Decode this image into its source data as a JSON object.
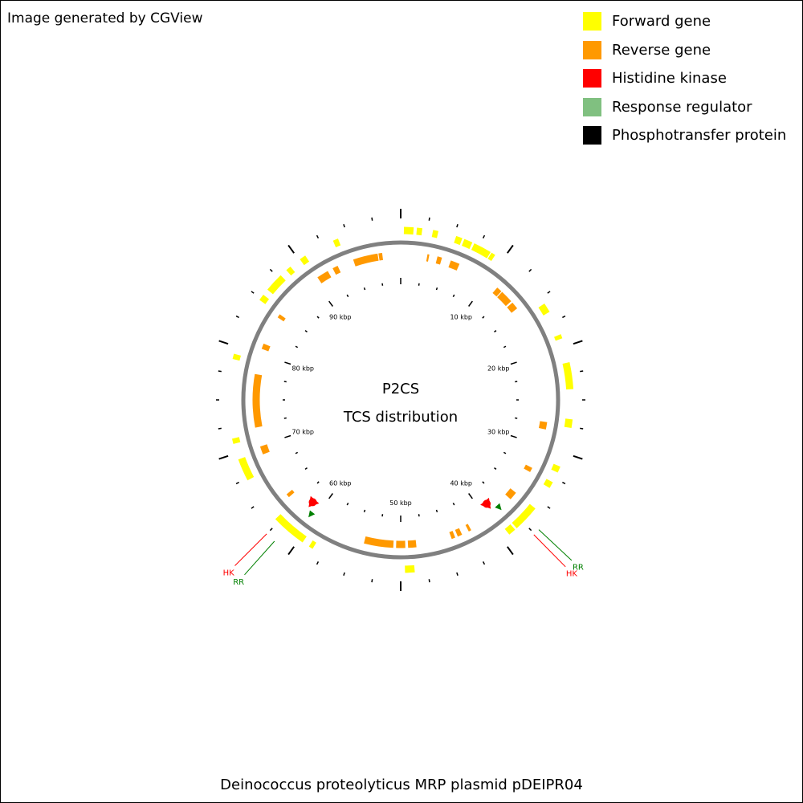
{
  "credit": "Image generated by CGView",
  "center": {
    "line1": "P2CS",
    "line2": "TCS distribution"
  },
  "footer": "Deinococcus proteolyticus MRP plasmid pDEIPR04",
  "legend": [
    {
      "label": "Forward gene",
      "color": "#ffff00"
    },
    {
      "label": "Reverse gene",
      "color": "#ff9900"
    },
    {
      "label": "Histidine kinase",
      "color": "#ff0000"
    },
    {
      "label": "Response regulator",
      "color": "#80c080"
    },
    {
      "label": "Phosphotransfer protein",
      "color": "#000000"
    }
  ],
  "colors": {
    "backbone": "#808080",
    "forward": "#ffff00",
    "reverse": "#ff9900",
    "hk": "#ff0000",
    "rr": "#008000",
    "tick": "#000000"
  },
  "genome": {
    "length_kbp": 100,
    "tick_labels": [
      "10 kbp",
      "20 kbp",
      "30 kbp",
      "40 kbp",
      "50 kbp",
      "60 kbp",
      "70 kbp",
      "80 kbp",
      "90 kbp"
    ],
    "forward_genes_kbp": [
      [
        0.3,
        1.2
      ],
      [
        1.5,
        2.0
      ],
      [
        3.0,
        3.5
      ],
      [
        5.2,
        5.8
      ],
      [
        6.0,
        6.8
      ],
      [
        7.0,
        8.7
      ],
      [
        8.8,
        9.2
      ],
      [
        15.6,
        16.5
      ],
      [
        18.8,
        19.2
      ],
      [
        21.5,
        24.0
      ],
      [
        26.8,
        27.6
      ],
      [
        31.3,
        31.9
      ],
      [
        32.9,
        33.5
      ],
      [
        35.8,
        38.3
      ],
      [
        38.5,
        39.2
      ],
      [
        48.7,
        49.6
      ],
      [
        58.5,
        58.9
      ],
      [
        59.6,
        62.9
      ],
      [
        67.3,
        69.4
      ],
      [
        70.9,
        71.4
      ],
      [
        78.8,
        79.3
      ],
      [
        84.8,
        85.4
      ],
      [
        86.0,
        87.8
      ],
      [
        88.5,
        89.0
      ],
      [
        90.1,
        90.7
      ],
      [
        93.6,
        94.1
      ]
    ],
    "reverse_genes_kbp": [
      [
        2.9,
        3.1
      ],
      [
        4.0,
        4.5
      ],
      [
        5.5,
        6.5
      ],
      [
        11.3,
        11.9
      ],
      [
        12.0,
        13.4
      ],
      [
        13.6,
        14.4
      ],
      [
        27.4,
        28.2
      ],
      [
        32.6,
        33.1
      ],
      [
        35.8,
        36.7
      ],
      [
        42.1,
        42.4
      ],
      [
        43.2,
        43.7
      ],
      [
        44.0,
        44.4
      ],
      [
        48.3,
        49.2
      ],
      [
        49.5,
        50.5
      ],
      [
        50.8,
        54.0
      ],
      [
        63.6,
        64.0
      ],
      [
        69.0,
        69.9
      ],
      [
        72.0,
        77.8
      ],
      [
        80.6,
        81.2
      ],
      [
        84.4,
        84.8
      ],
      [
        90.5,
        91.8
      ],
      [
        92.4,
        93.0
      ],
      [
        94.8,
        97.5
      ],
      [
        97.6,
        98.0
      ]
    ],
    "hk_kbp": [
      39.0,
      61.3
    ],
    "rr_kbp": [
      38.2,
      60.6
    ],
    "callouts": [
      {
        "kbp": 37.6,
        "label": "HK",
        "type": "hk"
      },
      {
        "kbp": 37.0,
        "label": "RR",
        "type": "rr"
      },
      {
        "kbp": 62.5,
        "label": "HK",
        "type": "hk"
      },
      {
        "kbp": 61.6,
        "label": "RR",
        "type": "rr"
      }
    ]
  }
}
